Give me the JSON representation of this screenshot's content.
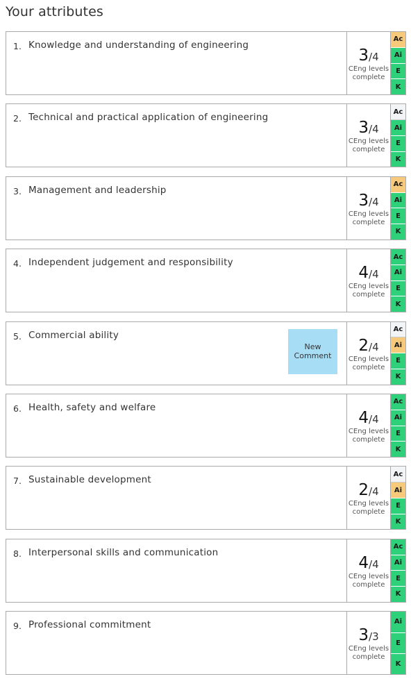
{
  "page": {
    "heading": "Your attributes"
  },
  "colors": {
    "complete": "#2fd07a",
    "in_progress": "#f6c97b",
    "not_started": "#f2f4f6",
    "comment_button": "#a8def5",
    "border": "#a9a9a9"
  },
  "attributes": [
    {
      "number": "1.",
      "title": "Knowledge and understanding of engineering",
      "score": "3",
      "total": "/4",
      "subtitle": "CEng levels complete",
      "levels": [
        {
          "label": "Ac",
          "status": "progress"
        },
        {
          "label": "Ai",
          "status": "complete"
        },
        {
          "label": "E",
          "status": "complete"
        },
        {
          "label": "K",
          "status": "complete"
        }
      ]
    },
    {
      "number": "2.",
      "title": "Technical and practical application of engineering",
      "score": "3",
      "total": "/4",
      "subtitle": "CEng levels complete",
      "levels": [
        {
          "label": "Ac",
          "status": "none"
        },
        {
          "label": "Ai",
          "status": "complete"
        },
        {
          "label": "E",
          "status": "complete"
        },
        {
          "label": "K",
          "status": "complete"
        }
      ]
    },
    {
      "number": "3.",
      "title": "Management and leadership",
      "score": "3",
      "total": "/4",
      "subtitle": "CEng levels complete",
      "levels": [
        {
          "label": "Ac",
          "status": "progress"
        },
        {
          "label": "Ai",
          "status": "complete"
        },
        {
          "label": "E",
          "status": "complete"
        },
        {
          "label": "K",
          "status": "complete"
        }
      ]
    },
    {
      "number": "4.",
      "title": "Independent judgement and responsibility",
      "score": "4",
      "total": "/4",
      "subtitle": "CEng levels complete",
      "levels": [
        {
          "label": "Ac",
          "status": "complete"
        },
        {
          "label": "Ai",
          "status": "complete"
        },
        {
          "label": "E",
          "status": "complete"
        },
        {
          "label": "K",
          "status": "complete"
        }
      ]
    },
    {
      "number": "5.",
      "title": "Commercial ability",
      "score": "2",
      "total": "/4",
      "subtitle": "CEng levels complete",
      "comment_button": "New\nComment",
      "levels": [
        {
          "label": "Ac",
          "status": "none"
        },
        {
          "label": "Ai",
          "status": "progress"
        },
        {
          "label": "E",
          "status": "complete"
        },
        {
          "label": "K",
          "status": "complete"
        }
      ]
    },
    {
      "number": "6.",
      "title": "Health, safety and welfare",
      "score": "4",
      "total": "/4",
      "subtitle": "CEng levels complete",
      "levels": [
        {
          "label": "Ac",
          "status": "complete"
        },
        {
          "label": "Ai",
          "status": "complete"
        },
        {
          "label": "E",
          "status": "complete"
        },
        {
          "label": "K",
          "status": "complete"
        }
      ]
    },
    {
      "number": "7.",
      "title": "Sustainable development",
      "score": "2",
      "total": "/4",
      "subtitle": "CEng levels complete",
      "levels": [
        {
          "label": "Ac",
          "status": "none"
        },
        {
          "label": "Ai",
          "status": "progress"
        },
        {
          "label": "E",
          "status": "complete"
        },
        {
          "label": "K",
          "status": "complete"
        }
      ]
    },
    {
      "number": "8.",
      "title": "Interpersonal skills and communication",
      "score": "4",
      "total": "/4",
      "subtitle": "CEng levels complete",
      "levels": [
        {
          "label": "Ac",
          "status": "complete"
        },
        {
          "label": "Ai",
          "status": "complete"
        },
        {
          "label": "E",
          "status": "complete"
        },
        {
          "label": "K",
          "status": "complete"
        }
      ]
    },
    {
      "number": "9.",
      "title": "Professional commitment",
      "score": "3",
      "total": "/3",
      "subtitle": "CEng levels complete",
      "levels": [
        {
          "label": "Ai",
          "status": "complete"
        },
        {
          "label": "E",
          "status": "complete"
        },
        {
          "label": "K",
          "status": "complete"
        }
      ]
    }
  ]
}
